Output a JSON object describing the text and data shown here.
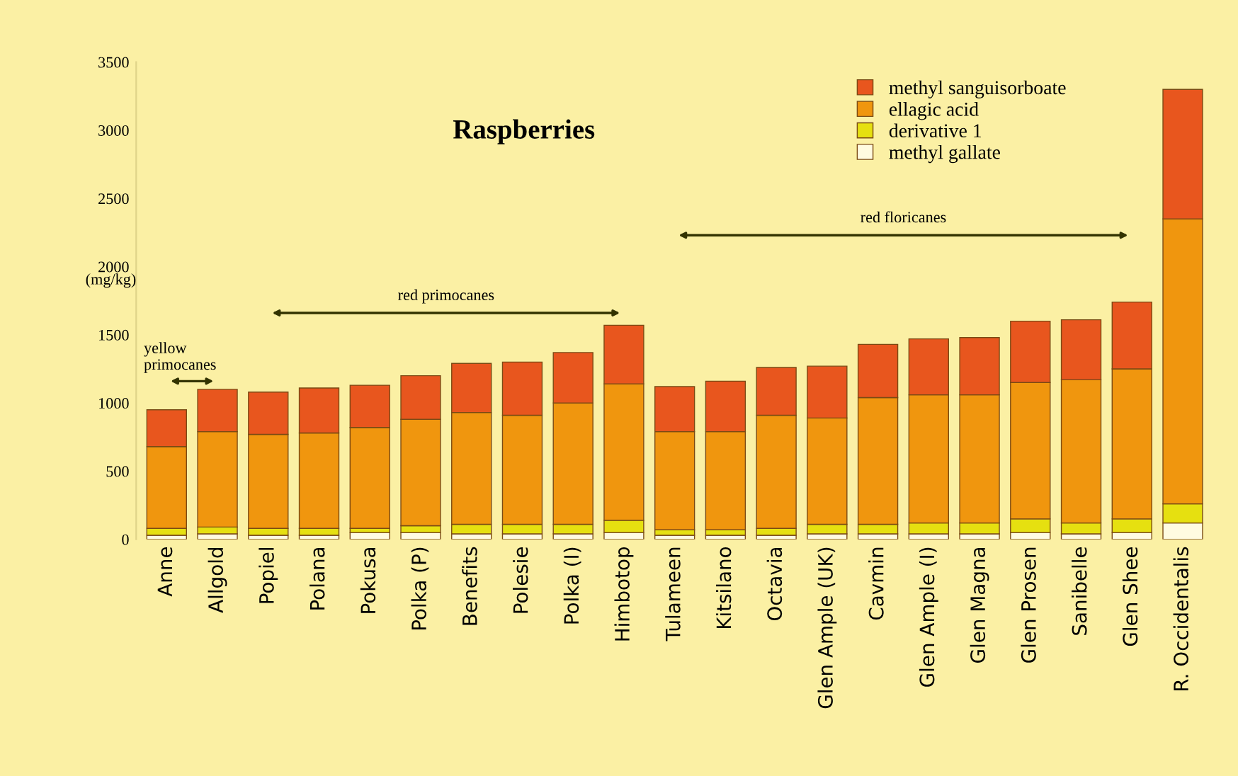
{
  "chart_data": {
    "type": "bar",
    "stacked": true,
    "title": "Raspberries",
    "ylabel": "(mg/kg)",
    "categories": [
      "Anne",
      "Allgold",
      "Popiel",
      "Polana",
      "Pokusa",
      "Polka (P)",
      "Benefits",
      "Polesie",
      "Polka (I)",
      "Himbotop",
      "Tulameen",
      "Kitsilano",
      "Octavia",
      "Glen Ample (UK)",
      "Cavmin",
      "Glen Ample (I)",
      "Glen Magna",
      "Glen Prosen",
      "Sanibelle",
      "Glen Shee",
      "R. Occidentalis"
    ],
    "series": [
      {
        "name": "methyl gallate",
        "color": "#fffbe0",
        "values": [
          30,
          40,
          30,
          30,
          50,
          50,
          40,
          40,
          40,
          50,
          30,
          30,
          30,
          40,
          40,
          40,
          40,
          50,
          40,
          50,
          120
        ]
      },
      {
        "name": "derivative 1",
        "color": "#e6e010",
        "values": [
          50,
          50,
          50,
          50,
          30,
          50,
          70,
          70,
          70,
          90,
          40,
          40,
          50,
          70,
          70,
          80,
          80,
          100,
          80,
          100,
          140
        ]
      },
      {
        "name": "ellagic acid",
        "color": "#f0960e",
        "values": [
          600,
          700,
          690,
          700,
          740,
          780,
          820,
          800,
          890,
          1000,
          720,
          720,
          830,
          780,
          930,
          940,
          940,
          1000,
          1050,
          1100,
          2090
        ]
      },
      {
        "name": "methyl sanguisorboate",
        "color": "#e8561e",
        "values": [
          270,
          310,
          310,
          330,
          310,
          320,
          360,
          390,
          370,
          430,
          330,
          370,
          350,
          380,
          390,
          410,
          420,
          450,
          440,
          490,
          950
        ]
      }
    ],
    "ylim": [
      0,
      3500
    ],
    "yticks": [
      0,
      500,
      1000,
      1500,
      2000,
      2500,
      3000,
      3500
    ],
    "grid": false,
    "legend": "top right",
    "annotations": [
      "yellow primocanes",
      "red primocanes",
      "red floricanes"
    ]
  }
}
